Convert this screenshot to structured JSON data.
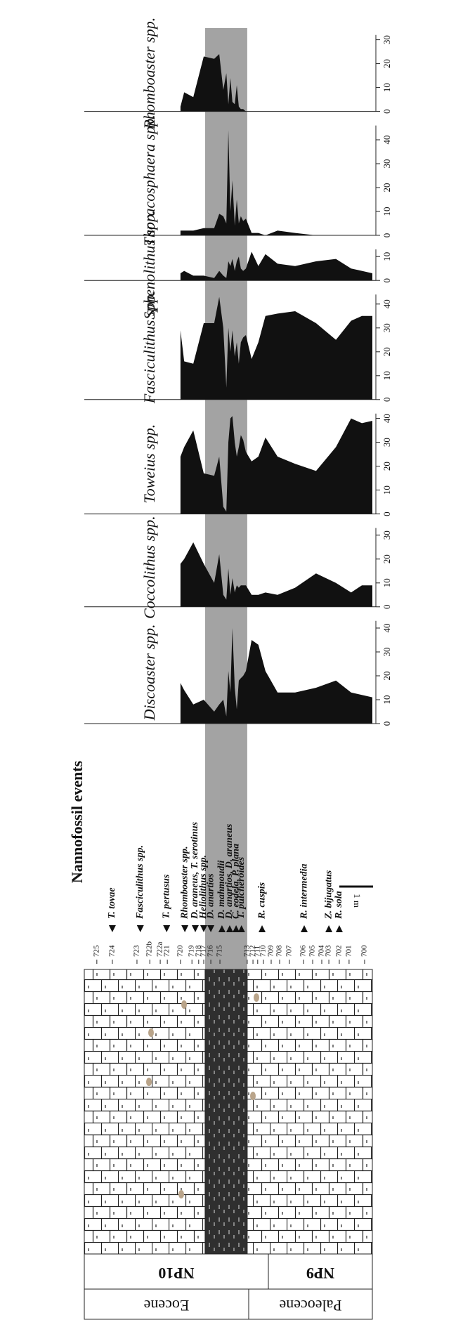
{
  "chart_data": {
    "type": "area",
    "color": "#111111",
    "xlim": [
      0,
      8.5
    ],
    "x": [
      5.69,
      5.58,
      5.31,
      5.0,
      4.69,
      4.54,
      4.42,
      4.33,
      4.27,
      4.21,
      4.15,
      4.08,
      4.02,
      3.96,
      3.9,
      3.83,
      3.75,
      3.58,
      3.38,
      3.17,
      2.81,
      2.29,
      1.67,
      1.08,
      0.63,
      0.31,
      0
    ],
    "band": [
      3.71,
      4.96
    ],
    "band_color": "#a3a3a3",
    "series": [
      {
        "name": "Discoaster spp.",
        "ylim": [
          0,
          43
        ],
        "yticks": [
          0,
          10,
          20,
          30,
          40
        ],
        "values": [
          17,
          14,
          8,
          10,
          5,
          8,
          10,
          3,
          22,
          13,
          40,
          15,
          6,
          18,
          19,
          20,
          22,
          35,
          33,
          22,
          13,
          13,
          15,
          18,
          13,
          12,
          11
        ]
      },
      {
        "name": "Coccolithus spp.",
        "ylim": [
          0,
          33
        ],
        "yticks": [
          0,
          10,
          20,
          30
        ],
        "values": [
          18,
          20,
          27,
          18,
          10,
          22,
          5,
          3,
          16,
          5,
          12,
          6,
          9,
          8,
          9,
          9,
          9,
          5,
          5,
          6,
          5,
          8,
          14,
          10,
          6,
          9,
          9
        ]
      },
      {
        "name": "Toweius spp.",
        "ylim": [
          0,
          42
        ],
        "yticks": [
          0,
          10,
          20,
          30,
          40
        ],
        "values": [
          24,
          28,
          35,
          17,
          16,
          24,
          3,
          1,
          30,
          40,
          41,
          30,
          24,
          28,
          33,
          31,
          26,
          22,
          24,
          32,
          24,
          21,
          18,
          28,
          40,
          38,
          39
        ]
      },
      {
        "name": "Fasciculithus spp.",
        "ylim": [
          0,
          44
        ],
        "yticks": [
          0,
          10,
          20,
          30,
          40
        ],
        "values": [
          29,
          16,
          15,
          32,
          32,
          43,
          30,
          5,
          30,
          20,
          29,
          18,
          24,
          15,
          24,
          26,
          27,
          17,
          24,
          35,
          36,
          37,
          32,
          25,
          33,
          35,
          35
        ]
      },
      {
        "name": "Sphenolithus spp.",
        "ylim": [
          0,
          13
        ],
        "yticks": [
          0,
          10
        ],
        "values": [
          3,
          4,
          2,
          2,
          1,
          4,
          2,
          1,
          8,
          6,
          9,
          4,
          8,
          10,
          5,
          4,
          5,
          12,
          6,
          11,
          7,
          6,
          8,
          9,
          5,
          4,
          3
        ]
      },
      {
        "name": "Thoracosphaera spp.",
        "ylim": [
          0,
          46
        ],
        "yticks": [
          0,
          10,
          20,
          30,
          40
        ],
        "values": [
          2,
          2,
          2,
          3,
          3,
          9,
          8,
          5,
          44,
          10,
          23,
          4,
          15,
          5,
          8,
          6,
          7,
          1,
          1,
          0,
          2,
          1,
          0,
          0,
          0,
          0,
          0
        ]
      },
      {
        "name": "Rhomboaster spp.",
        "ylim": [
          0,
          32
        ],
        "yticks": [
          0,
          10,
          20,
          30
        ],
        "values": [
          2,
          8,
          6,
          23,
          22,
          24,
          9,
          16,
          3,
          14,
          4,
          3,
          11,
          2,
          1,
          1,
          0,
          0,
          0,
          0,
          0,
          0,
          0,
          0,
          0,
          0,
          0
        ]
      }
    ]
  },
  "events_title": "Nannofossil events",
  "events": [
    {
      "label": "T. tovae",
      "x": 7.71,
      "marker": "down"
    },
    {
      "label": "Fasciculithus spp.",
      "x": 6.88,
      "marker": "down"
    },
    {
      "label": "T. pertusus",
      "x": 6.1,
      "marker": "down"
    },
    {
      "label": "Rhomboaster spp.",
      "x": 5.56,
      "marker": "down"
    },
    {
      "label": "D. araneus, T. serotinus",
      "x": 5.25,
      "marker": "down"
    },
    {
      "label": "Heliolithus spp.",
      "x": 5.0,
      "marker": "down"
    },
    {
      "label": "D. anartios",
      "x": 4.79,
      "marker": "down"
    },
    {
      "label": "D. mahmoudii",
      "x": 4.46,
      "marker": "up"
    },
    {
      "label": "D. anartios, D. araneus",
      "x": 4.23,
      "marker": "up"
    },
    {
      "label": "C. eodela, P. plana",
      "x": 4.04,
      "marker": "up"
    },
    {
      "label": "T. pulcheroides",
      "x": 3.88,
      "marker": "up"
    },
    {
      "label": "R. cuspis",
      "x": 3.27,
      "marker": "up"
    },
    {
      "label": "R. intermedia",
      "x": 2.02,
      "marker": "up"
    },
    {
      "label": "Z. bijugatus",
      "x": 1.29,
      "marker": "up"
    },
    {
      "label": "R. sola",
      "x": 0.98,
      "marker": "up"
    }
  ],
  "samples": {
    "labels": [
      "725",
      "724",
      "723",
      "722b",
      "722a",
      "721",
      "720",
      "719",
      "718",
      "717",
      "716",
      "715",
      "713",
      "712",
      "711",
      "710",
      "709",
      "708",
      "707",
      "706",
      "705",
      "704",
      "703",
      "702",
      "701",
      "700"
    ],
    "x": [
      8.17,
      7.71,
      6.98,
      6.6,
      6.29,
      6.08,
      5.69,
      5.35,
      5.15,
      5.0,
      4.79,
      4.52,
      3.71,
      3.54,
      3.4,
      3.23,
      3.0,
      2.75,
      2.46,
      2.04,
      1.77,
      1.5,
      1.29,
      0.98,
      0.69,
      0.23
    ]
  },
  "scale_bar": {
    "label": "1 m",
    "length": 1
  },
  "zones": [
    "NP10",
    "NP9"
  ],
  "epochs": [
    "Eocene",
    "Paleocene"
  ]
}
